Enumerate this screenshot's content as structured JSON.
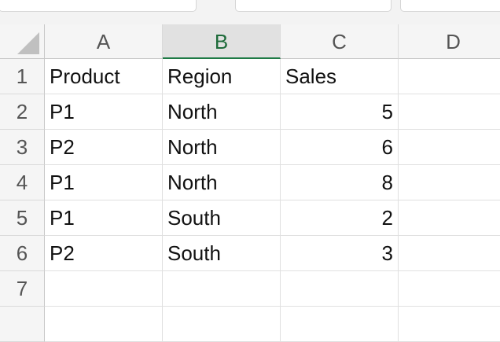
{
  "columns": [
    "A",
    "B",
    "C",
    "D"
  ],
  "row_numbers": [
    1,
    2,
    3,
    4,
    5,
    6,
    7
  ],
  "table": {
    "header": [
      "Product",
      "Region",
      "Sales"
    ],
    "rows": [
      [
        "P1",
        "North",
        5
      ],
      [
        "P2",
        "North",
        6
      ],
      [
        "P1",
        "North",
        8
      ],
      [
        "P1",
        "South",
        2
      ],
      [
        "P2",
        "South",
        3
      ]
    ]
  }
}
